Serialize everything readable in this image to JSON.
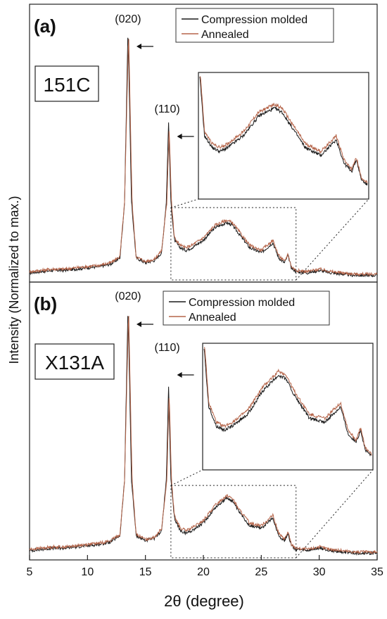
{
  "figure": {
    "xlabel": "2θ (degree)",
    "ylabel": "Intensity (Normalized to max.)"
  },
  "chart_data": [
    {
      "type": "line",
      "panel_label": "(a)",
      "sample_label": "151C",
      "xlim": [
        5,
        35
      ],
      "xticks": [
        5,
        10,
        15,
        20,
        25,
        30,
        35
      ],
      "ylim": [
        0,
        1.08
      ],
      "y_ticks_shown": false,
      "legend": "top-right",
      "peak_labels": [
        {
          "text": "(020)",
          "x": 13.5
        },
        {
          "text": "(110)",
          "x": 17.0
        }
      ],
      "zoom_region": {
        "x": [
          17.2,
          28.0
        ],
        "y": [
          0,
          0.28
        ]
      },
      "series": [
        {
          "name": "Compression molded",
          "color": "#1a1a1a",
          "x": [
            5,
            6,
            7,
            8,
            9,
            10,
            11,
            12,
            12.8,
            13.2,
            13.5,
            13.8,
            14.2,
            15,
            15.8,
            16.4,
            16.8,
            17.0,
            17.2,
            17.5,
            18,
            18.5,
            19,
            20,
            21,
            22,
            22.5,
            23,
            24,
            25,
            25.5,
            26,
            26.5,
            27,
            27.3,
            27.6,
            28,
            29,
            30,
            31,
            32,
            33,
            34,
            35
          ],
          "y": [
            0.02,
            0.025,
            0.03,
            0.03,
            0.035,
            0.04,
            0.045,
            0.055,
            0.08,
            0.3,
            1.0,
            0.3,
            0.08,
            0.06,
            0.07,
            0.1,
            0.3,
            0.62,
            0.3,
            0.15,
            0.12,
            0.11,
            0.12,
            0.15,
            0.2,
            0.22,
            0.21,
            0.18,
            0.12,
            0.1,
            0.12,
            0.14,
            0.08,
            0.06,
            0.09,
            0.04,
            0.025,
            0.02,
            0.03,
            0.02,
            0.015,
            0.01,
            0.01,
            0.01
          ]
        },
        {
          "name": "Annealed",
          "color": "#b5654a",
          "x": [
            5,
            6,
            7,
            8,
            9,
            10,
            11,
            12,
            12.8,
            13.2,
            13.55,
            13.85,
            14.2,
            15,
            15.8,
            16.4,
            16.85,
            17.05,
            17.25,
            17.5,
            18,
            18.5,
            19,
            20,
            21,
            22,
            22.5,
            23,
            24,
            25,
            25.5,
            26,
            26.5,
            27,
            27.3,
            27.6,
            28,
            29,
            30,
            31,
            32,
            33,
            34,
            35
          ],
          "y": [
            0.025,
            0.03,
            0.035,
            0.035,
            0.04,
            0.045,
            0.05,
            0.06,
            0.085,
            0.3,
            0.98,
            0.3,
            0.085,
            0.065,
            0.075,
            0.11,
            0.3,
            0.6,
            0.3,
            0.16,
            0.13,
            0.12,
            0.13,
            0.16,
            0.21,
            0.23,
            0.22,
            0.19,
            0.13,
            0.11,
            0.13,
            0.15,
            0.09,
            0.065,
            0.095,
            0.045,
            0.03,
            0.025,
            0.035,
            0.025,
            0.02,
            0.015,
            0.015,
            0.015
          ]
        }
      ]
    },
    {
      "type": "line",
      "panel_label": "(b)",
      "sample_label": "X131A",
      "xlim": [
        5,
        35
      ],
      "xticks": [
        5,
        10,
        15,
        20,
        25,
        30,
        35
      ],
      "ylim": [
        0,
        1.08
      ],
      "y_ticks_shown": false,
      "legend": "top-right",
      "peak_labels": [
        {
          "text": "(020)",
          "x": 13.5
        },
        {
          "text": "(110)",
          "x": 17.0
        }
      ],
      "zoom_region": {
        "x": [
          17.2,
          28.0
        ],
        "y": [
          0,
          0.28
        ]
      },
      "series": [
        {
          "name": "Compression molded",
          "color": "#1a1a1a",
          "x": [
            5,
            6,
            7,
            8,
            9,
            10,
            11,
            12,
            12.8,
            13.2,
            13.5,
            13.8,
            14.2,
            15,
            15.8,
            16.4,
            16.8,
            17.0,
            17.2,
            17.5,
            18,
            18.5,
            19,
            20,
            21,
            22,
            22.5,
            23,
            24,
            25,
            25.5,
            26,
            26.5,
            27,
            27.3,
            27.6,
            28,
            29,
            30,
            31,
            32,
            33,
            34,
            35
          ],
          "y": [
            0.02,
            0.025,
            0.03,
            0.03,
            0.035,
            0.04,
            0.045,
            0.055,
            0.08,
            0.3,
            1.0,
            0.3,
            0.08,
            0.06,
            0.07,
            0.1,
            0.3,
            0.67,
            0.3,
            0.15,
            0.1,
            0.09,
            0.1,
            0.13,
            0.19,
            0.23,
            0.22,
            0.18,
            0.12,
            0.11,
            0.13,
            0.15,
            0.08,
            0.06,
            0.09,
            0.04,
            0.025,
            0.02,
            0.03,
            0.02,
            0.015,
            0.01,
            0.01,
            0.01
          ]
        },
        {
          "name": "Annealed",
          "color": "#b5654a",
          "x": [
            5,
            6,
            7,
            8,
            9,
            10,
            11,
            12,
            12.8,
            13.2,
            13.55,
            13.85,
            14.2,
            15,
            15.8,
            16.4,
            16.85,
            17.05,
            17.25,
            17.5,
            18,
            18.5,
            19,
            20,
            21,
            22,
            22.5,
            23,
            24,
            25,
            25.5,
            26,
            26.5,
            27,
            27.3,
            27.6,
            28,
            29,
            30,
            31,
            32,
            33,
            34,
            35
          ],
          "y": [
            0.025,
            0.03,
            0.035,
            0.035,
            0.04,
            0.045,
            0.05,
            0.06,
            0.085,
            0.3,
            0.98,
            0.3,
            0.085,
            0.065,
            0.075,
            0.11,
            0.3,
            0.65,
            0.3,
            0.16,
            0.11,
            0.1,
            0.11,
            0.14,
            0.2,
            0.24,
            0.23,
            0.19,
            0.13,
            0.12,
            0.14,
            0.16,
            0.09,
            0.065,
            0.095,
            0.045,
            0.03,
            0.025,
            0.035,
            0.025,
            0.02,
            0.015,
            0.015,
            0.015
          ]
        }
      ]
    }
  ]
}
